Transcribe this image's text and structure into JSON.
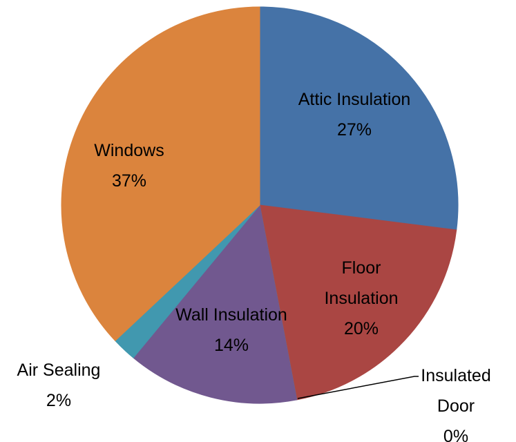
{
  "chart_data": {
    "type": "pie",
    "categories": [
      "Attic Insulation",
      "Floor Insulation",
      "Insulated Door",
      "Wall Insulation",
      "Air Sealing",
      "Windows"
    ],
    "values": [
      27,
      20,
      0,
      14,
      2,
      37
    ],
    "value_labels": [
      "27%",
      "20%",
      "0%",
      "14%",
      "2%",
      "37%"
    ],
    "colors": [
      "#4572a7",
      "#aa4643",
      "#89a54e",
      "#71588f",
      "#4198af",
      "#db843d"
    ]
  }
}
